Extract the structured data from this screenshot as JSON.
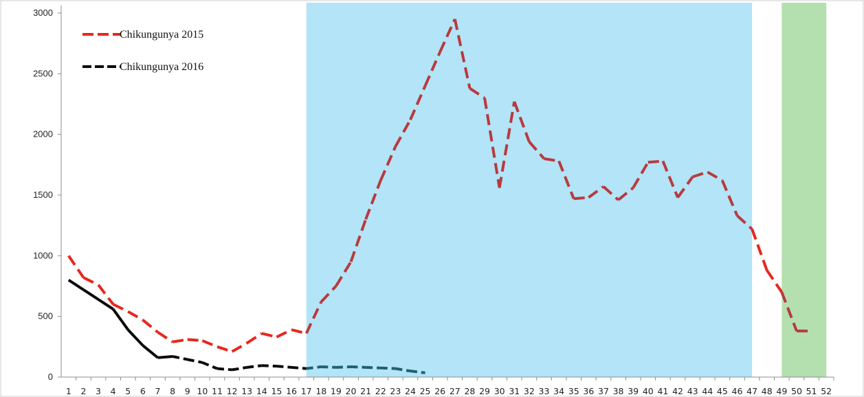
{
  "chart_data": {
    "type": "line",
    "title": "",
    "xlabel": "",
    "ylabel": "",
    "xlim": [
      1,
      52
    ],
    "ylim": [
      0,
      3000
    ],
    "y_ticks": [
      0,
      500,
      1000,
      1500,
      2000,
      2500,
      3000
    ],
    "x_ticks": [
      1,
      2,
      3,
      4,
      5,
      6,
      7,
      8,
      9,
      10,
      11,
      12,
      13,
      14,
      15,
      16,
      17,
      18,
      19,
      20,
      21,
      22,
      23,
      24,
      25,
      26,
      27,
      28,
      29,
      30,
      31,
      32,
      33,
      34,
      35,
      36,
      37,
      38,
      39,
      40,
      41,
      42,
      43,
      44,
      45,
      46,
      47,
      48,
      49,
      50,
      51,
      52
    ],
    "grid": false,
    "legend_position": "top-left",
    "shaded_regions": [
      {
        "from": 17,
        "to": 47,
        "color": "#b3e4f7"
      },
      {
        "from": 49,
        "to": 52,
        "color": "#b4dfae"
      }
    ],
    "series": [
      {
        "name": "Chikungunya 2015",
        "color": "#e8271d",
        "color_in_shaded": "#b83a3e",
        "dash": true,
        "x": [
          1,
          2,
          3,
          4,
          5,
          6,
          7,
          8,
          9,
          10,
          11,
          12,
          13,
          14,
          15,
          16,
          17,
          18,
          19,
          20,
          21,
          22,
          23,
          24,
          25,
          26,
          27,
          28,
          29,
          30,
          31,
          32,
          33,
          34,
          35,
          36,
          37,
          38,
          39,
          40,
          41,
          42,
          43,
          44,
          45,
          46,
          47,
          48,
          49,
          50,
          51
        ],
        "values": [
          1000,
          820,
          760,
          600,
          540,
          470,
          370,
          290,
          310,
          300,
          250,
          210,
          280,
          360,
          330,
          390,
          360,
          620,
          750,
          950,
          1300,
          1620,
          1900,
          2120,
          2400,
          2680,
          2950,
          2380,
          2300,
          1560,
          2270,
          1940,
          1800,
          1780,
          1470,
          1480,
          1570,
          1460,
          1560,
          1770,
          1780,
          1480,
          1650,
          1690,
          1620,
          1330,
          1220,
          880,
          700,
          380,
          380
        ]
      },
      {
        "name": "Chikungunya 2016",
        "color": "#0a0a0a",
        "color_in_shaded": "#1f5f70",
        "dash_after_x": 8,
        "x": [
          1,
          2,
          3,
          4,
          5,
          6,
          7,
          8,
          9,
          10,
          11,
          12,
          13,
          14,
          15,
          16,
          17,
          18,
          19,
          20,
          21,
          22,
          23,
          24,
          25
        ],
        "values": [
          800,
          720,
          640,
          560,
          390,
          260,
          160,
          170,
          145,
          120,
          70,
          60,
          80,
          95,
          90,
          80,
          70,
          85,
          80,
          85,
          80,
          75,
          70,
          50,
          35
        ]
      }
    ]
  }
}
